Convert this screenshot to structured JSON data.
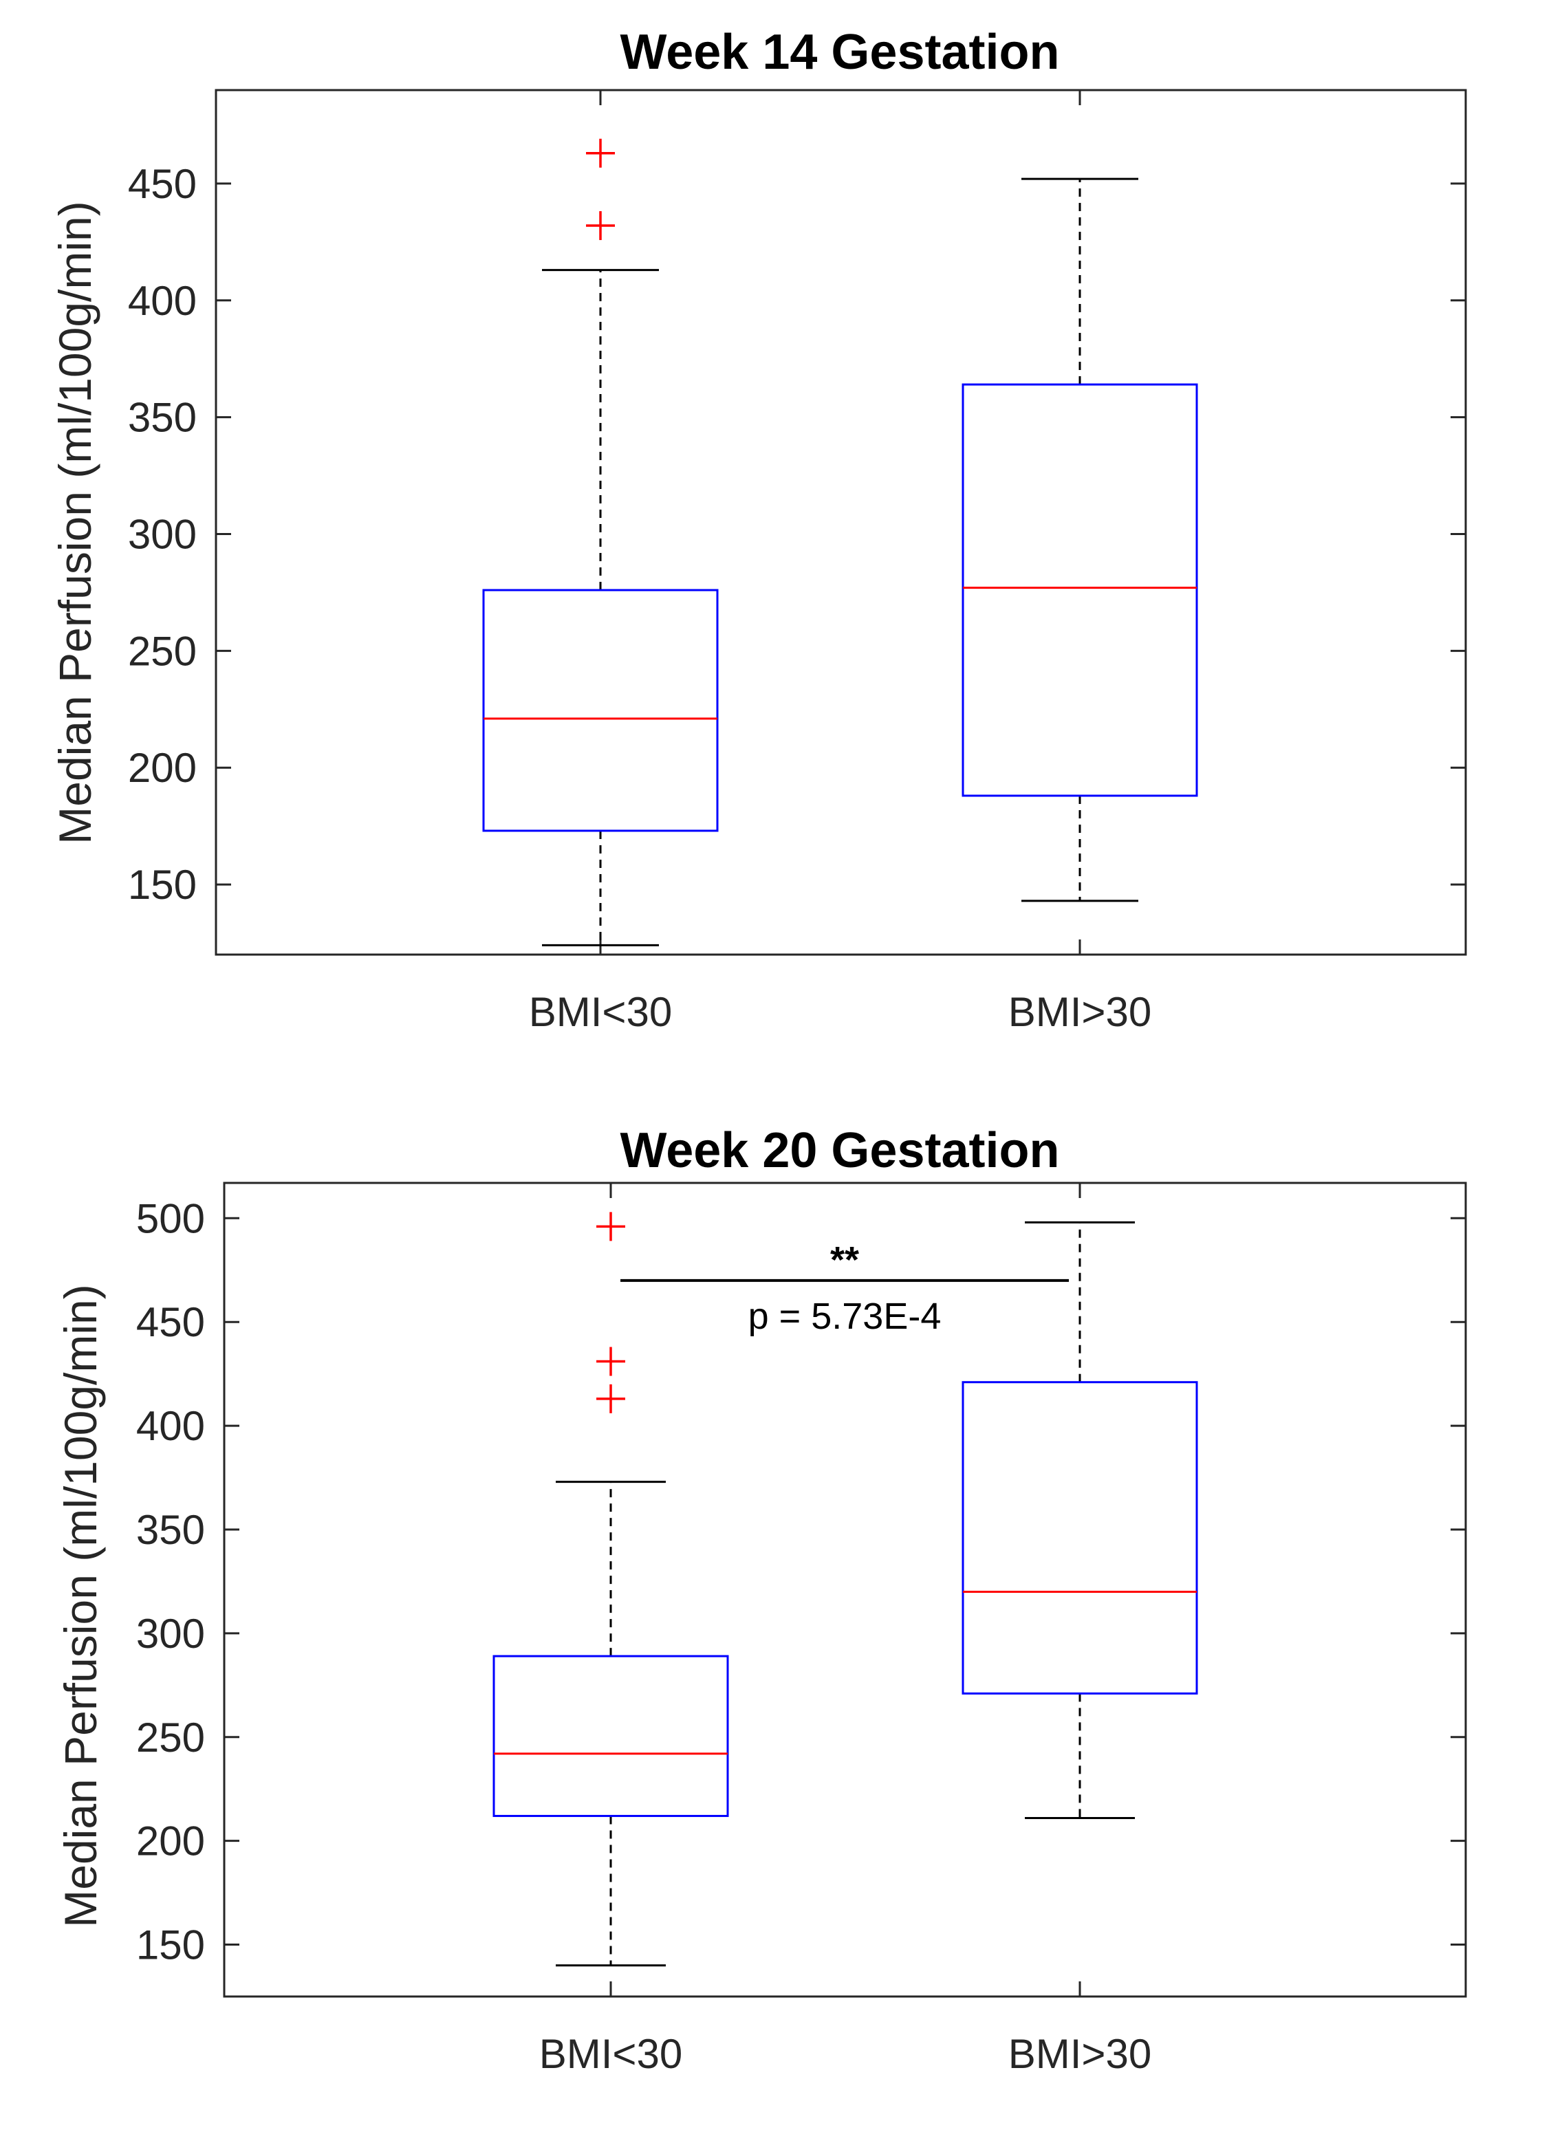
{
  "chart_data": [
    {
      "type": "boxplot",
      "title": "Week 14 Gestation",
      "xlabel": "",
      "ylabel": "Median Perfusion (ml/100g/min)",
      "ylim": [
        120,
        490
      ],
      "yticks": [
        150,
        200,
        250,
        300,
        350,
        400,
        450
      ],
      "categories": [
        "BMI<30",
        "BMI>30"
      ],
      "boxes": [
        {
          "name": "BMI<30",
          "whisker_low": 124,
          "q1": 173,
          "median": 221,
          "q3": 276,
          "whisker_high": 413,
          "outliers": [
            463,
            432
          ]
        },
        {
          "name": "BMI>30",
          "whisker_low": 143,
          "q1": 188,
          "median": 277,
          "q3": 364,
          "whisker_high": 452,
          "outliers": []
        }
      ],
      "colors": {
        "box": "#0000ff",
        "median": "#ff0000",
        "outlier": "#ff0000",
        "whisker": "#000000"
      }
    },
    {
      "type": "boxplot",
      "title": "Week 20 Gestation",
      "xlabel": "",
      "ylabel": "Median Perfusion (ml/100g/min)",
      "ylim": [
        125,
        517
      ],
      "yticks": [
        150,
        200,
        250,
        300,
        350,
        400,
        450,
        500
      ],
      "categories": [
        "BMI<30",
        "BMI>30"
      ],
      "boxes": [
        {
          "name": "BMI<30",
          "whisker_low": 140,
          "q1": 212,
          "median": 242,
          "q3": 289,
          "whisker_high": 373,
          "outliers": [
            496,
            431,
            413
          ]
        },
        {
          "name": "BMI>30",
          "whisker_low": 211,
          "q1": 271,
          "median": 320,
          "q3": 421,
          "whisker_high": 498,
          "outliers": []
        }
      ],
      "annotation": {
        "stars": "**",
        "pvalue": "p = 5.73E-4",
        "y": 470
      },
      "colors": {
        "box": "#0000ff",
        "median": "#ff0000",
        "outlier": "#ff0000",
        "whisker": "#000000"
      }
    }
  ]
}
